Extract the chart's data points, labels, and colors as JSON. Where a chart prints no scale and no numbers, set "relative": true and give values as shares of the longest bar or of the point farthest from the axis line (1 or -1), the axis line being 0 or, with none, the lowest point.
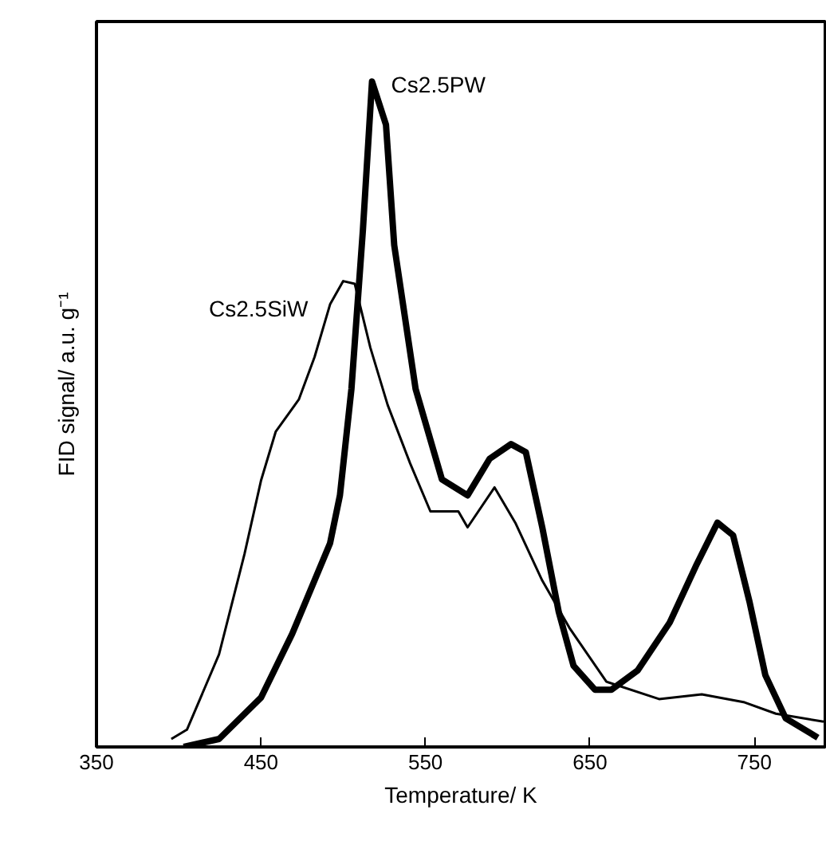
{
  "chart_data": {
    "type": "line",
    "relative": true,
    "xlabel": "Temperature/ K",
    "ylabel": "FID signal/ a.u. g⁻¹",
    "xlim": [
      350,
      793
    ],
    "xticks": [
      350,
      450,
      550,
      650,
      750
    ],
    "grid": false,
    "marker": "none",
    "line_style": "solid",
    "series": [
      {
        "name": "Cs2.5PW",
        "color": "#000000",
        "x": [
          403,
          424.5,
          450,
          469,
          492,
          498,
          505,
          512,
          517.5,
          526,
          531,
          544,
          560,
          575.6,
          589,
          602,
          611,
          621,
          631,
          640,
          653,
          663,
          679,
          698.5,
          715,
          727.5,
          737,
          747,
          756.6,
          769,
          788.5
        ],
        "values": [
          0,
          0.012,
          0.074,
          0.17,
          0.306,
          0.378,
          0.538,
          0.778,
          1.0,
          0.935,
          0.754,
          0.538,
          0.402,
          0.378,
          0.433,
          0.455,
          0.443,
          0.33,
          0.203,
          0.122,
          0.086,
          0.086,
          0.115,
          0.187,
          0.275,
          0.337,
          0.318,
          0.218,
          0.108,
          0.043,
          0.014
        ]
      },
      {
        "name": "Cs2.5SiW",
        "color": "#000000",
        "x": [
          395.5,
          405,
          424.5,
          440,
          450,
          459,
          473,
          482.6,
          492,
          500,
          507,
          516.5,
          527,
          540.7,
          553,
          570,
          575.6,
          592,
          604.6,
          621,
          637.5,
          660,
          692,
          718,
          744,
          763,
          792
        ],
        "values": [
          0.012,
          0.026,
          0.139,
          0.29,
          0.4,
          0.474,
          0.522,
          0.586,
          0.665,
          0.7,
          0.696,
          0.6,
          0.514,
          0.426,
          0.354,
          0.354,
          0.33,
          0.39,
          0.337,
          0.25,
          0.179,
          0.098,
          0.072,
          0.079,
          0.067,
          0.05,
          0.038
        ]
      }
    ]
  }
}
